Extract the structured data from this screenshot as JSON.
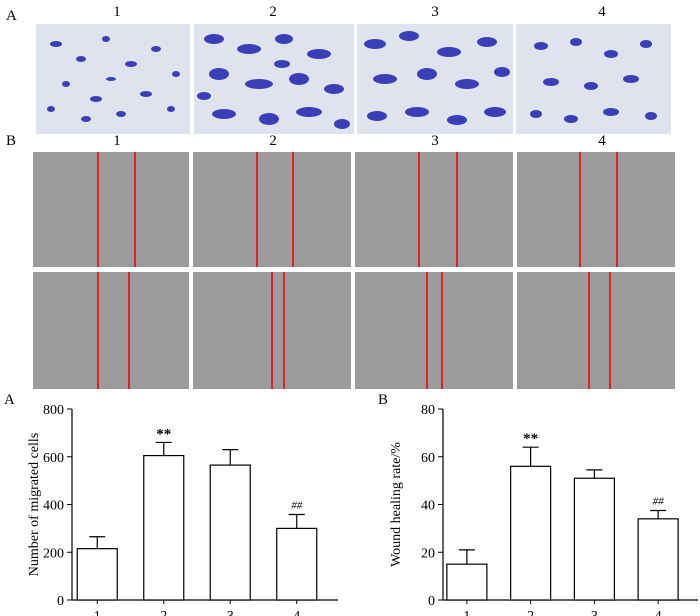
{
  "figure": {
    "panel_labels": {
      "top_a": "A",
      "top_b": "B",
      "bottom_a": "A",
      "bottom_b": "B"
    },
    "column_labels_row1": [
      "1",
      "2",
      "3",
      "4"
    ],
    "column_labels_row2": [
      "1",
      "2",
      "3",
      "4"
    ],
    "colors": {
      "stain_bg": "#dfe3ee",
      "stain_cells": "#3a3fb8",
      "wound_bg": "#9b9b9b",
      "wound_line": "#e0202a"
    }
  },
  "chart_data": [
    {
      "type": "bar",
      "categories": [
        "1",
        "2",
        "3",
        "4"
      ],
      "values": [
        215,
        605,
        565,
        300
      ],
      "errors": [
        50,
        55,
        65,
        58
      ],
      "annotations": [
        "",
        "**",
        "",
        "##"
      ],
      "ylabel": "Number of migrated cells",
      "ylim": [
        0,
        800
      ],
      "yticks": [
        "0",
        "200",
        "400",
        "600",
        "800"
      ],
      "grid": false,
      "bar_fill": "#ffffff"
    },
    {
      "type": "bar",
      "categories": [
        "1",
        "2",
        "3",
        "4"
      ],
      "values": [
        15,
        56,
        51,
        34
      ],
      "errors": [
        6,
        8,
        3.5,
        3.5
      ],
      "annotations": [
        "",
        "**",
        "",
        "##"
      ],
      "ylabel": "Wound healing rate/%",
      "ylim": [
        0,
        80
      ],
      "yticks": [
        "0",
        "20",
        "40",
        "60",
        "80"
      ],
      "grid": false,
      "bar_fill": "#ffffff"
    }
  ]
}
